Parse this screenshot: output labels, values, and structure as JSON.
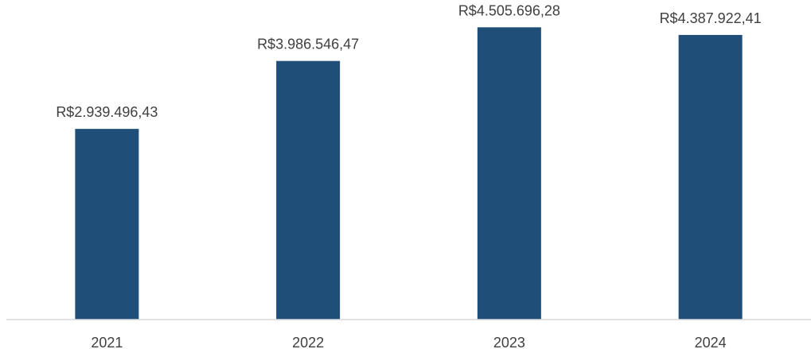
{
  "chart_data": {
    "type": "bar",
    "title": "",
    "xlabel": "",
    "ylabel": "",
    "categories": [
      "2021",
      "2022",
      "2023",
      "2024"
    ],
    "values": [
      2939496.43,
      3986546.47,
      4505696.28,
      4387922.41
    ],
    "value_labels": [
      "R$2.939.496,43",
      "R$3.986.546,47",
      "R$4.505.696,28",
      "R$4.387.922,41"
    ],
    "ylim": [
      0,
      5000000
    ],
    "grid": false,
    "legend": "none",
    "bar_color": "#1f4e79",
    "axis_color": "#d9d9d9",
    "text_color": "#404040"
  }
}
